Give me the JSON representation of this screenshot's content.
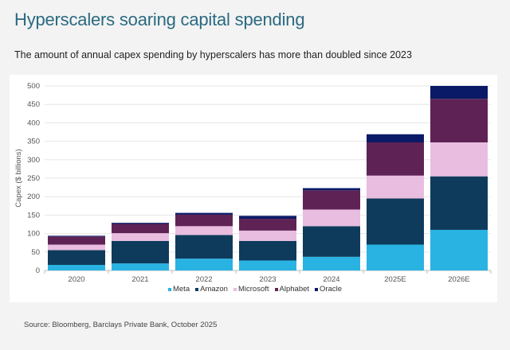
{
  "title": "Hyperscalers soaring capital spending",
  "subtitle": "The amount of annual capex spending by hyperscalers has more than doubled since 2023",
  "source": "Source: Bloomberg, Barclays Private Bank, October 2025",
  "chart_data": {
    "type": "bar",
    "stacked": true,
    "categories": [
      "2020",
      "2021",
      "2022",
      "2023",
      "2024",
      "2025E",
      "2026E"
    ],
    "ylabel": "Capex ($ billions)",
    "ylim": [
      0,
      500
    ],
    "yticks": [
      0,
      50,
      100,
      150,
      200,
      250,
      300,
      350,
      400,
      450,
      500
    ],
    "grid": true,
    "legend_position": "bottom",
    "series": [
      {
        "name": "Meta",
        "color": "#29b3e3",
        "values": [
          15,
          19,
          32,
          27,
          37,
          70,
          110
        ]
      },
      {
        "name": "Amazon",
        "color": "#0e3b5c",
        "values": [
          40,
          61,
          64,
          53,
          83,
          125,
          145
        ]
      },
      {
        "name": "Microsoft",
        "color": "#e8bde0",
        "values": [
          15,
          21,
          24,
          28,
          45,
          62,
          92
        ]
      },
      {
        "name": "Alphabet",
        "color": "#5f2255",
        "values": [
          22,
          25,
          31,
          32,
          52,
          90,
          118
        ]
      },
      {
        "name": "Oracle",
        "color": "#0a1a66",
        "values": [
          2,
          3,
          5,
          8,
          6,
          22,
          35
        ]
      }
    ]
  }
}
